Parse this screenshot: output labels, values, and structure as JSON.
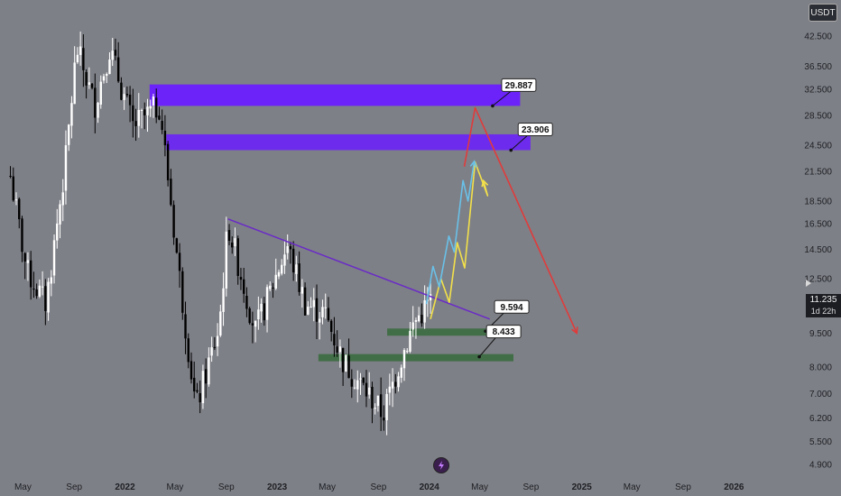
{
  "scale": {
    "currency_label": "USDT",
    "price_labels": [
      "42.500",
      "36.500",
      "32.500",
      "28.500",
      "24.500",
      "21.500",
      "18.500",
      "16.500",
      "14.500",
      "12.500",
      "9.500",
      "8.000",
      "7.000",
      "6.200",
      "5.500",
      "4.900"
    ],
    "last_price": "11.235",
    "countdown": "1d 22h"
  },
  "time_axis": [
    {
      "label": "May",
      "bold": false
    },
    {
      "label": "Sep",
      "bold": false
    },
    {
      "label": "2022",
      "bold": true
    },
    {
      "label": "May",
      "bold": false
    },
    {
      "label": "Sep",
      "bold": false
    },
    {
      "label": "2023",
      "bold": true
    },
    {
      "label": "May",
      "bold": false
    },
    {
      "label": "Sep",
      "bold": false
    },
    {
      "label": "2024",
      "bold": true
    },
    {
      "label": "May",
      "bold": false
    },
    {
      "label": "Sep",
      "bold": false
    },
    {
      "label": "2025",
      "bold": true
    },
    {
      "label": "May",
      "bold": false
    },
    {
      "label": "Sep",
      "bold": false
    },
    {
      "label": "2026",
      "bold": true
    }
  ],
  "colors": {
    "background": "#7e8087",
    "resistance_zone": "#6a1dff",
    "support_zone": "#3e6d43",
    "trendline": "#6a2bc6",
    "projection_red": "#e03b3b",
    "projection_yellow": "#f2e04a",
    "projection_blue": "#69c0e8",
    "candle_up": "#ffffff",
    "candle_down": "#000000"
  },
  "chart_data": {
    "type": "candlestick",
    "title": "",
    "yscale": "log",
    "ylim": [
      4.6,
      48
    ],
    "xlim": [
      "2021-03-20",
      "2026-04-25"
    ],
    "grid": false,
    "price_path": [
      {
        "date": "2021-04-01",
        "price": 21.0
      },
      {
        "date": "2021-05-10",
        "price": 13.0
      },
      {
        "date": "2021-06-25",
        "price": 11.0
      },
      {
        "date": "2021-08-10",
        "price": 22.0
      },
      {
        "date": "2021-09-07",
        "price": 40.0
      },
      {
        "date": "2021-10-20",
        "price": 30.0
      },
      {
        "date": "2021-11-25",
        "price": 40.0
      },
      {
        "date": "2022-01-20",
        "price": 27.0
      },
      {
        "date": "2022-03-25",
        "price": 30.0
      },
      {
        "date": "2022-05-10",
        "price": 13.0
      },
      {
        "date": "2022-06-20",
        "price": 6.5
      },
      {
        "date": "2022-08-15",
        "price": 9.8
      },
      {
        "date": "2022-09-05",
        "price": 16.5
      },
      {
        "date": "2022-11-10",
        "price": 9.6
      },
      {
        "date": "2023-01-25",
        "price": 14.8
      },
      {
        "date": "2023-03-10",
        "price": 11.0
      },
      {
        "date": "2023-04-25",
        "price": 10.5
      },
      {
        "date": "2023-06-10",
        "price": 8.2
      },
      {
        "date": "2023-08-18",
        "price": 6.8
      },
      {
        "date": "2023-09-12",
        "price": 6.3
      },
      {
        "date": "2023-10-20",
        "price": 8.1
      },
      {
        "date": "2023-11-25",
        "price": 10.0
      },
      {
        "date": "2024-01-04",
        "price": 11.2
      }
    ],
    "resistance_zones": [
      {
        "from": "2022-03-01",
        "to": "2024-08-06",
        "low": 29.887,
        "high": 33.3,
        "label": "29.887"
      },
      {
        "from": "2022-04-10",
        "to": "2024-08-31",
        "low": 23.906,
        "high": 25.9,
        "label": "23.906"
      }
    ],
    "support_zones": [
      {
        "from": "2023-09-22",
        "to": "2024-07-27",
        "low": 9.4,
        "high": 9.594,
        "label": "9.594"
      },
      {
        "from": "2023-04-10",
        "to": "2024-07-21",
        "low": 8.25,
        "high": 8.433,
        "label": "8.433"
      }
    ],
    "trendline": [
      {
        "date": "2022-09-05",
        "price": 16.9
      },
      {
        "date": "2024-05-25",
        "price": 10.2
      }
    ],
    "projections": [
      {
        "name": "",
        "color": "red",
        "points": [
          {
            "date": "2024-03-25",
            "price": 22.0
          },
          {
            "date": "2024-04-20",
            "price": 29.6
          },
          {
            "date": "2024-12-20",
            "price": 9.5
          }
        ]
      },
      {
        "name": "",
        "color": "yellow",
        "points": [
          {
            "date": "2024-01-04",
            "price": 10.2
          },
          {
            "date": "2024-01-29",
            "price": 12.5
          },
          {
            "date": "2024-02-18",
            "price": 11.1
          },
          {
            "date": "2024-03-08",
            "price": 15.0
          },
          {
            "date": "2024-03-26",
            "price": 13.2
          },
          {
            "date": "2024-04-20",
            "price": 22.5
          },
          {
            "date": "2024-05-20",
            "price": 19.0
          },
          {
            "date": "2024-05-10",
            "price": 20.5
          }
        ]
      },
      {
        "name": "",
        "color": "blue",
        "points": [
          {
            "date": "2023-12-25",
            "price": 11.0
          },
          {
            "date": "2024-01-10",
            "price": 13.3
          },
          {
            "date": "2024-01-25",
            "price": 12.0
          },
          {
            "date": "2024-02-17",
            "price": 15.5
          },
          {
            "date": "2024-03-01",
            "price": 14.3
          },
          {
            "date": "2024-03-22",
            "price": 20.5
          },
          {
            "date": "2024-04-03",
            "price": 18.5
          },
          {
            "date": "2024-04-18",
            "price": 22.6
          }
        ]
      }
    ]
  }
}
